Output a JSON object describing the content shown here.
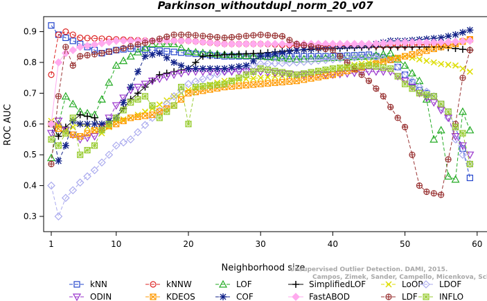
{
  "chart_data": {
    "type": "line",
    "title": "Parkinson_withoutdupl_norm_20_v07",
    "xlabel": "Neighborhood size",
    "ylabel": "ROC AUC",
    "xlim": [
      0,
      60
    ],
    "ylim": [
      0.27,
      0.95
    ],
    "xticks": [
      "1",
      "10",
      "20",
      "30",
      "40",
      "50",
      "60"
    ],
    "yticks": [
      "0.3",
      "0.4",
      "0.5",
      "0.6",
      "0.7",
      "0.8",
      "0.9"
    ],
    "grid": false,
    "legend_position": "bottom",
    "watermark": [
      "Unsupervised Outlier Detection. DAMI, 2015.",
      "Campos, Zimek, Sander, Campello, Micenkova, Schubert, Assent, Houle"
    ],
    "series": [
      {
        "name": "kNN",
        "color": "#2244cc",
        "marker": "square",
        "dash": "5,3",
        "anchors": [
          [
            1,
            0.92
          ],
          [
            2,
            0.89
          ],
          [
            3,
            0.88
          ],
          [
            5,
            0.86
          ],
          [
            8,
            0.83
          ],
          [
            10,
            0.84
          ],
          [
            12,
            0.845
          ],
          [
            15,
            0.84
          ],
          [
            20,
            0.83
          ],
          [
            25,
            0.82
          ],
          [
            30,
            0.82
          ],
          [
            35,
            0.82
          ],
          [
            40,
            0.82
          ],
          [
            45,
            0.825
          ],
          [
            48,
            0.81
          ],
          [
            50,
            0.76
          ],
          [
            52,
            0.71
          ],
          [
            54,
            0.69
          ],
          [
            56,
            0.64
          ],
          [
            57,
            0.59
          ],
          [
            58,
            0.52
          ],
          [
            59,
            0.425
          ]
        ]
      },
      {
        "name": "kNNW",
        "color": "#dd2222",
        "marker": "circle",
        "dash": "5,3",
        "anchors": [
          [
            1,
            0.76
          ],
          [
            2,
            0.89
          ],
          [
            3,
            0.9
          ],
          [
            5,
            0.88
          ],
          [
            10,
            0.875
          ],
          [
            15,
            0.87
          ],
          [
            20,
            0.87
          ],
          [
            25,
            0.86
          ],
          [
            30,
            0.86
          ],
          [
            35,
            0.855
          ],
          [
            40,
            0.855
          ],
          [
            45,
            0.855
          ],
          [
            50,
            0.855
          ],
          [
            55,
            0.86
          ],
          [
            57,
            0.865
          ],
          [
            59,
            0.875
          ]
        ]
      },
      {
        "name": "LOF",
        "color": "#22aa22",
        "marker": "triangle",
        "dash": "5,3",
        "anchors": [
          [
            1,
            0.49
          ],
          [
            2,
            0.6
          ],
          [
            3,
            0.69
          ],
          [
            5,
            0.64
          ],
          [
            7,
            0.63
          ],
          [
            8,
            0.68
          ],
          [
            10,
            0.79
          ],
          [
            12,
            0.82
          ],
          [
            15,
            0.86
          ],
          [
            18,
            0.86
          ],
          [
            20,
            0.835
          ],
          [
            25,
            0.825
          ],
          [
            30,
            0.82
          ],
          [
            35,
            0.81
          ],
          [
            40,
            0.815
          ],
          [
            45,
            0.82
          ],
          [
            48,
            0.83
          ],
          [
            50,
            0.79
          ],
          [
            52,
            0.74
          ],
          [
            53,
            0.68
          ],
          [
            54,
            0.55
          ],
          [
            55,
            0.58
          ],
          [
            56,
            0.43
          ],
          [
            57,
            0.42
          ],
          [
            58,
            0.64
          ],
          [
            59,
            0.58
          ]
        ]
      },
      {
        "name": "SimplifiedLOF",
        "color": "#000000",
        "marker": "plus",
        "dash": "",
        "anchors": [
          [
            1,
            0.6
          ],
          [
            2,
            0.56
          ],
          [
            3,
            0.59
          ],
          [
            5,
            0.63
          ],
          [
            7,
            0.62
          ],
          [
            8,
            0.58
          ],
          [
            10,
            0.62
          ],
          [
            12,
            0.68
          ],
          [
            14,
            0.72
          ],
          [
            16,
            0.76
          ],
          [
            18,
            0.77
          ],
          [
            20,
            0.78
          ],
          [
            22,
            0.82
          ],
          [
            25,
            0.825
          ],
          [
            30,
            0.83
          ],
          [
            35,
            0.84
          ],
          [
            40,
            0.845
          ],
          [
            45,
            0.85
          ],
          [
            50,
            0.85
          ],
          [
            55,
            0.85
          ],
          [
            59,
            0.84
          ]
        ]
      },
      {
        "name": "LoOP",
        "color": "#dddd00",
        "marker": "x",
        "dash": "5,3",
        "anchors": [
          [
            1,
            0.61
          ],
          [
            3,
            0.58
          ],
          [
            5,
            0.6
          ],
          [
            8,
            0.57
          ],
          [
            10,
            0.61
          ],
          [
            12,
            0.62
          ],
          [
            15,
            0.65
          ],
          [
            18,
            0.69
          ],
          [
            20,
            0.71
          ],
          [
            25,
            0.74
          ],
          [
            30,
            0.75
          ],
          [
            35,
            0.76
          ],
          [
            40,
            0.78
          ],
          [
            45,
            0.8
          ],
          [
            50,
            0.82
          ],
          [
            52,
            0.81
          ],
          [
            55,
            0.795
          ],
          [
            57,
            0.79
          ],
          [
            59,
            0.77
          ]
        ]
      },
      {
        "name": "LDOF",
        "color": "#aaaaee",
        "marker": "diamond",
        "dash": "5,3",
        "anchors": [
          [
            1,
            0.4
          ],
          [
            2,
            0.3
          ],
          [
            3,
            0.36
          ],
          [
            5,
            0.41
          ],
          [
            7,
            0.45
          ],
          [
            9,
            0.5
          ],
          [
            10,
            0.53
          ],
          [
            12,
            0.55
          ],
          [
            15,
            0.62
          ],
          [
            18,
            0.69
          ],
          [
            20,
            0.73
          ],
          [
            25,
            0.77
          ],
          [
            30,
            0.795
          ],
          [
            35,
            0.8
          ],
          [
            40,
            0.81
          ],
          [
            45,
            0.82
          ],
          [
            48,
            0.81
          ],
          [
            50,
            0.76
          ],
          [
            52,
            0.72
          ],
          [
            54,
            0.69
          ],
          [
            56,
            0.62
          ],
          [
            57,
            0.55
          ],
          [
            58,
            0.5
          ],
          [
            59,
            0.47
          ]
        ]
      },
      {
        "name": "ODIN",
        "color": "#9933cc",
        "marker": "triangledown",
        "dash": "5,3",
        "anchors": [
          [
            1,
            0.57
          ],
          [
            2,
            0.61
          ],
          [
            3,
            0.58
          ],
          [
            5,
            0.55
          ],
          [
            7,
            0.56
          ],
          [
            9,
            0.62
          ],
          [
            10,
            0.66
          ],
          [
            12,
            0.71
          ],
          [
            15,
            0.74
          ],
          [
            18,
            0.76
          ],
          [
            20,
            0.77
          ],
          [
            25,
            0.77
          ],
          [
            30,
            0.77
          ],
          [
            35,
            0.76
          ],
          [
            40,
            0.76
          ],
          [
            45,
            0.77
          ],
          [
            48,
            0.77
          ],
          [
            50,
            0.74
          ],
          [
            52,
            0.7
          ],
          [
            54,
            0.67
          ],
          [
            56,
            0.62
          ],
          [
            57,
            0.56
          ],
          [
            58,
            0.53
          ],
          [
            59,
            0.5
          ]
        ]
      },
      {
        "name": "KDEOS",
        "color": "#ff9900",
        "marker": "squarex",
        "dash": "5,3",
        "anchors": [
          [
            1,
            0.6
          ],
          [
            3,
            0.57
          ],
          [
            5,
            0.56
          ],
          [
            7,
            0.58
          ],
          [
            10,
            0.6
          ],
          [
            12,
            0.62
          ],
          [
            15,
            0.63
          ],
          [
            18,
            0.66
          ],
          [
            20,
            0.7
          ],
          [
            25,
            0.72
          ],
          [
            30,
            0.73
          ],
          [
            35,
            0.74
          ],
          [
            40,
            0.76
          ],
          [
            45,
            0.79
          ],
          [
            50,
            0.82
          ],
          [
            55,
            0.85
          ],
          [
            57,
            0.86
          ],
          [
            59,
            0.875
          ]
        ]
      },
      {
        "name": "COF",
        "color": "#112288",
        "marker": "asterisk",
        "dash": "5,3",
        "anchors": [
          [
            1,
            0.6
          ],
          [
            2,
            0.48
          ],
          [
            3,
            0.53
          ],
          [
            4,
            0.61
          ],
          [
            5,
            0.6
          ],
          [
            8,
            0.6
          ],
          [
            10,
            0.62
          ],
          [
            12,
            0.72
          ],
          [
            14,
            0.82
          ],
          [
            16,
            0.83
          ],
          [
            18,
            0.8
          ],
          [
            20,
            0.78
          ],
          [
            25,
            0.78
          ],
          [
            28,
            0.79
          ],
          [
            30,
            0.82
          ],
          [
            35,
            0.84
          ],
          [
            40,
            0.85
          ],
          [
            45,
            0.855
          ],
          [
            48,
            0.87
          ],
          [
            50,
            0.87
          ],
          [
            55,
            0.88
          ],
          [
            57,
            0.89
          ],
          [
            59,
            0.905
          ]
        ]
      },
      {
        "name": "FastABOD",
        "color": "#ffaaee",
        "marker": "diamondfill",
        "dash": "",
        "anchors": [
          [
            1,
            0.6
          ],
          [
            2,
            0.8
          ],
          [
            3,
            0.83
          ],
          [
            5,
            0.85
          ],
          [
            10,
            0.87
          ],
          [
            15,
            0.87
          ],
          [
            20,
            0.87
          ],
          [
            25,
            0.86
          ],
          [
            30,
            0.86
          ],
          [
            35,
            0.86
          ],
          [
            40,
            0.86
          ],
          [
            45,
            0.86
          ],
          [
            50,
            0.865
          ],
          [
            55,
            0.865
          ],
          [
            59,
            0.87
          ]
        ]
      },
      {
        "name": "LDF",
        "color": "#993333",
        "marker": "circleplus",
        "dash": "5,3",
        "anchors": [
          [
            1,
            0.47
          ],
          [
            2,
            0.69
          ],
          [
            3,
            0.85
          ],
          [
            4,
            0.79
          ],
          [
            5,
            0.82
          ],
          [
            8,
            0.83
          ],
          [
            10,
            0.84
          ],
          [
            15,
            0.87
          ],
          [
            18,
            0.89
          ],
          [
            20,
            0.89
          ],
          [
            25,
            0.88
          ],
          [
            30,
            0.89
          ],
          [
            33,
            0.885
          ],
          [
            35,
            0.86
          ],
          [
            40,
            0.84
          ],
          [
            43,
            0.78
          ],
          [
            45,
            0.74
          ],
          [
            47,
            0.69
          ],
          [
            49,
            0.62
          ],
          [
            50,
            0.59
          ],
          [
            51,
            0.5
          ],
          [
            52,
            0.4
          ],
          [
            53,
            0.38
          ],
          [
            55,
            0.37
          ],
          [
            57,
            0.6
          ],
          [
            58,
            0.75
          ],
          [
            59,
            0.84
          ]
        ]
      },
      {
        "name": "INFLO",
        "color": "#99cc33",
        "marker": "xsquare",
        "dash": "5,3",
        "anchors": [
          [
            1,
            0.55
          ],
          [
            2,
            0.53
          ],
          [
            3,
            0.57
          ],
          [
            4,
            0.62
          ],
          [
            5,
            0.5
          ],
          [
            7,
            0.53
          ],
          [
            8,
            0.58
          ],
          [
            10,
            0.62
          ],
          [
            12,
            0.67
          ],
          [
            14,
            0.69
          ],
          [
            15,
            0.66
          ],
          [
            16,
            0.62
          ],
          [
            18,
            0.66
          ],
          [
            19,
            0.72
          ],
          [
            20,
            0.6
          ],
          [
            21,
            0.72
          ],
          [
            25,
            0.73
          ],
          [
            30,
            0.78
          ],
          [
            35,
            0.76
          ],
          [
            40,
            0.78
          ],
          [
            45,
            0.79
          ],
          [
            48,
            0.78
          ],
          [
            50,
            0.73
          ],
          [
            52,
            0.7
          ],
          [
            54,
            0.69
          ],
          [
            56,
            0.64
          ],
          [
            57,
            0.59
          ],
          [
            58,
            0.57
          ],
          [
            59,
            0.47
          ]
        ]
      }
    ]
  }
}
